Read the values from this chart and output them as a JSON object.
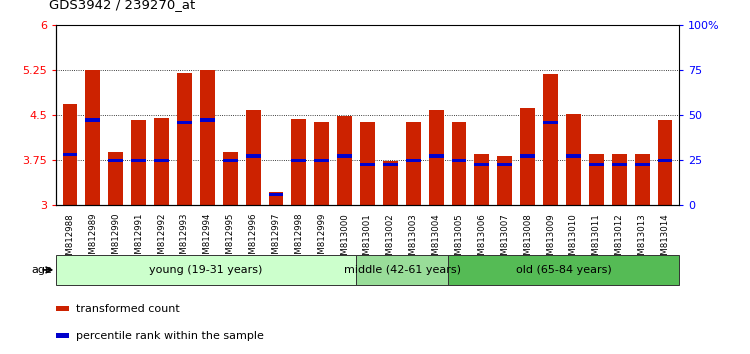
{
  "title": "GDS3942 / 239270_at",
  "samples": [
    "GSM812988",
    "GSM812989",
    "GSM812990",
    "GSM812991",
    "GSM812992",
    "GSM812993",
    "GSM812994",
    "GSM812995",
    "GSM812996",
    "GSM812997",
    "GSM812998",
    "GSM812999",
    "GSM813000",
    "GSM813001",
    "GSM813002",
    "GSM813003",
    "GSM813004",
    "GSM813005",
    "GSM813006",
    "GSM813007",
    "GSM813008",
    "GSM813009",
    "GSM813010",
    "GSM813011",
    "GSM813012",
    "GSM813013",
    "GSM813014"
  ],
  "red_values": [
    4.68,
    5.25,
    3.88,
    4.42,
    4.45,
    5.2,
    5.25,
    3.88,
    4.58,
    3.22,
    4.43,
    4.38,
    4.48,
    4.38,
    3.73,
    4.38,
    4.58,
    4.38,
    3.85,
    3.82,
    4.62,
    5.18,
    4.52,
    3.85,
    3.85,
    3.85,
    4.42
  ],
  "blue_values": [
    3.85,
    4.42,
    3.75,
    3.75,
    3.75,
    4.38,
    4.42,
    3.75,
    3.82,
    3.18,
    3.75,
    3.75,
    3.82,
    3.68,
    3.68,
    3.75,
    3.82,
    3.75,
    3.68,
    3.68,
    3.82,
    4.38,
    3.82,
    3.68,
    3.68,
    3.68,
    3.75
  ],
  "groups": [
    {
      "label": "young (19-31 years)",
      "start": 0,
      "end": 13,
      "color": "#ccffcc"
    },
    {
      "label": "middle (42-61 years)",
      "start": 13,
      "end": 17,
      "color": "#99dd99"
    },
    {
      "label": "old (65-84 years)",
      "start": 17,
      "end": 27,
      "color": "#55bb55"
    }
  ],
  "ylim_left": [
    3.0,
    6.0
  ],
  "yticks_left": [
    3.0,
    3.75,
    4.5,
    5.25,
    6.0
  ],
  "ylim_right": [
    0,
    100
  ],
  "yticks_right": [
    0,
    25,
    50,
    75,
    100
  ],
  "ylabel_right_labels": [
    "0",
    "25",
    "50",
    "75",
    "100%"
  ],
  "bar_color": "#cc2200",
  "marker_color": "#0000cc",
  "legend_items": [
    {
      "label": "transformed count",
      "color": "#cc2200"
    },
    {
      "label": "percentile rank within the sample",
      "color": "#0000cc"
    }
  ],
  "age_label": "age",
  "ytick_left_labels": [
    "3",
    "3.75",
    "4.5",
    "5.25",
    "6"
  ]
}
